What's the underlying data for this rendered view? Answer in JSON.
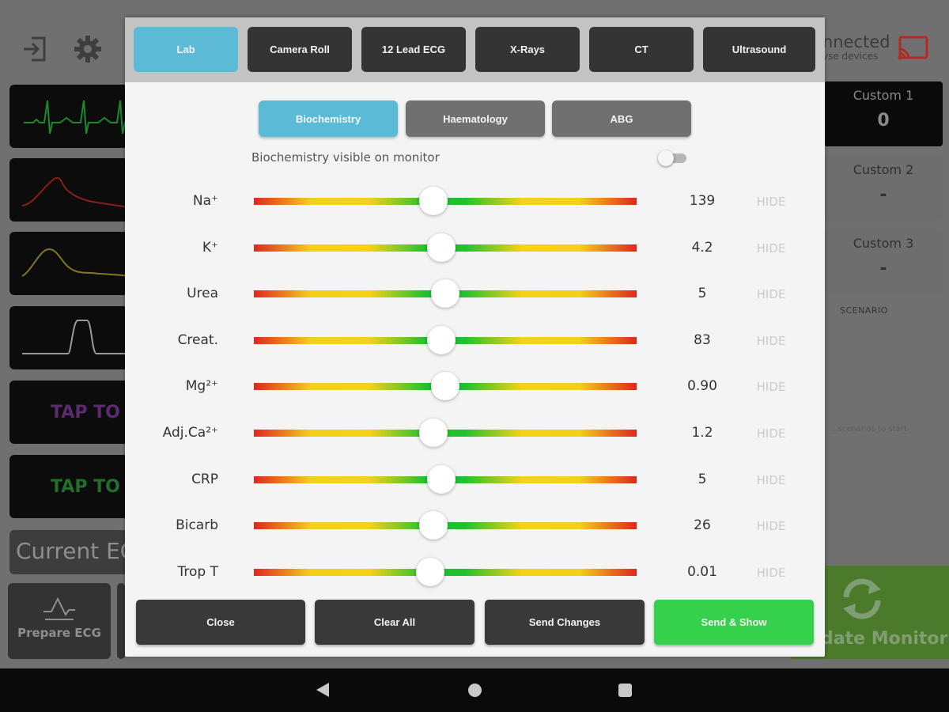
{
  "background": {
    "connection": {
      "title": "nnected",
      "subtitle": "vse devices"
    },
    "tap_tiles": [
      {
        "text": "TAP TO S"
      },
      {
        "text": "TAP TO S"
      }
    ],
    "current_ecg": "Current EC",
    "prepare_ecg": "Prepare ECG",
    "customs": [
      {
        "title": "Custom 1",
        "value": "0"
      },
      {
        "title": "Custom 2",
        "value": "-"
      },
      {
        "title": "Custom 3",
        "value": "-"
      }
    ],
    "scenario_label": "SCENARIO",
    "scenario_hint": "...scenarios to start",
    "update_monitor": "date Monitor"
  },
  "modal": {
    "tabs": [
      {
        "label": "Lab",
        "active": true
      },
      {
        "label": "Camera Roll",
        "active": false
      },
      {
        "label": "12 Lead ECG",
        "active": false
      },
      {
        "label": "X-Rays",
        "active": false
      },
      {
        "label": "CT",
        "active": false
      },
      {
        "label": "Ultrasound",
        "active": false
      }
    ],
    "subtabs": [
      {
        "label": "Biochemistry",
        "active": true
      },
      {
        "label": "Haematology",
        "active": false
      },
      {
        "label": "ABG",
        "active": false
      }
    ],
    "visible_label": "Biochemistry visible on monitor",
    "visible_toggle_on": false,
    "rows": [
      {
        "label": "Na⁺",
        "value": "139",
        "slider_fraction": 0.47,
        "hide": "HIDE"
      },
      {
        "label": "K⁺",
        "value": "4.2",
        "slider_fraction": 0.49,
        "hide": "HIDE"
      },
      {
        "label": "Urea",
        "value": "5",
        "slider_fraction": 0.5,
        "hide": "HIDE"
      },
      {
        "label": "Creat.",
        "value": "83",
        "slider_fraction": 0.49,
        "hide": "HIDE"
      },
      {
        "label": "Mg²⁺",
        "value": "0.90",
        "slider_fraction": 0.5,
        "hide": "HIDE"
      },
      {
        "label": "Adj.Ca²⁺",
        "value": "1.2",
        "slider_fraction": 0.47,
        "hide": "HIDE"
      },
      {
        "label": "CRP",
        "value": "5",
        "slider_fraction": 0.49,
        "hide": "HIDE"
      },
      {
        "label": "Bicarb",
        "value": "26",
        "slider_fraction": 0.47,
        "hide": "HIDE"
      },
      {
        "label": "Trop T",
        "value": "0.01",
        "slider_fraction": 0.46,
        "hide": "HIDE"
      }
    ],
    "actions": {
      "close": "Close",
      "clear_all": "Clear All",
      "send_changes": "Send Changes",
      "send_show": "Send & Show"
    }
  },
  "colors": {
    "accent": "#5bbbd6",
    "send_show": "#35d04c",
    "dark_button": "#393939"
  }
}
